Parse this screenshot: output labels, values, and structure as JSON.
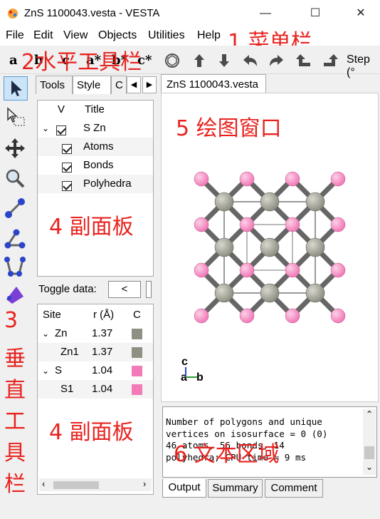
{
  "window": {
    "title": "ZnS 1100043.vesta - VESTA",
    "minimize": "—",
    "maximize": "☐",
    "close": "✕"
  },
  "menu": [
    "File",
    "Edit",
    "View",
    "Objects",
    "Utilities",
    "Help"
  ],
  "toolbar": {
    "axis_a": "a",
    "axis_b": "b",
    "axis_c": "c",
    "axis_a_star": "a*",
    "axis_b_star": "b*",
    "axis_c_star": "c*",
    "step_label": "Step (°"
  },
  "side_tabs": [
    "Tools",
    "Style",
    "C"
  ],
  "objects_panel": {
    "header_v": "V",
    "header_title": "Title",
    "root": "S Zn",
    "items": [
      "Atoms",
      "Bonds",
      "Polyhedra"
    ]
  },
  "toggle": {
    "label": "Toggle data:",
    "button": "<"
  },
  "site_table": {
    "headers": [
      "Site",
      "r (Å)",
      "C"
    ],
    "rows": [
      {
        "site": "Zn",
        "r": "1.37",
        "color": "#8f8f84",
        "group": true
      },
      {
        "site": "Zn1",
        "r": "1.37",
        "color": "#8f8f84",
        "group": false
      },
      {
        "site": "S",
        "r": "1.04",
        "color": "#f27ab8",
        "group": true
      },
      {
        "site": "S1",
        "r": "1.04",
        "color": "#f27ab8",
        "group": false
      }
    ]
  },
  "canvas": {
    "tab_label": "ZnS 1100043.vesta",
    "axis_c": "c",
    "axis_ab": "a",
    "axis_b2": "b"
  },
  "output_text": [
    "Number of polygons and unique",
    "vertices on isosurface = 0 (0)",
    "46 atoms, 56 bonds, 14",
    "polyhedra; CPU time = 9 ms"
  ],
  "bottom_tabs": [
    "Output",
    "Summary",
    "Comment"
  ],
  "annotations": {
    "menu": "1 菜单栏",
    "htoolbar": "2水平工具栏",
    "vtoolbar_num": "3",
    "vtoolbar_chars": [
      "垂",
      "直",
      "工",
      "具",
      "栏"
    ],
    "panel_top": "4 副面板",
    "panel_bottom": "4 副面板",
    "canvas": "5 绘图窗口",
    "text_area": "6 文本区域"
  },
  "colors": {
    "zn": "#8f8f84",
    "s": "#f27ab8",
    "annotation": "#e8231f",
    "selected_tool": "#cce4f7"
  }
}
